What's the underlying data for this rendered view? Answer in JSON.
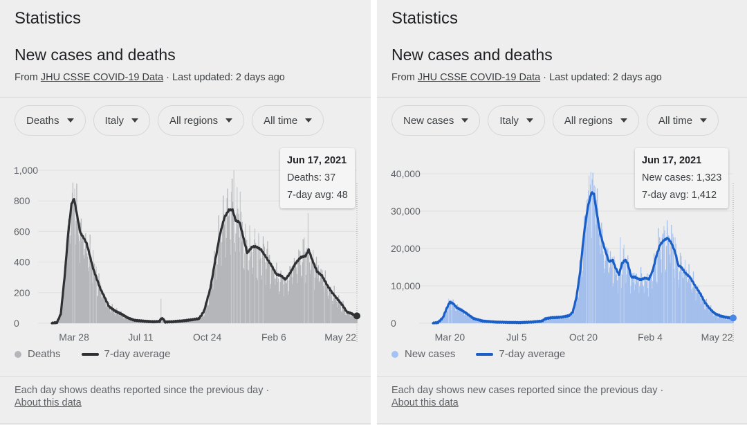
{
  "panels": [
    {
      "title": "Statistics",
      "subtitle": "New cases and deaths",
      "source_prefix": "From ",
      "source_link": "JHU CSSE COVID-19 Data",
      "source_suffix": " · Last updated: 2 days ago",
      "filters": [
        {
          "label": "Deaths"
        },
        {
          "label": "Italy"
        },
        {
          "label": "All regions"
        },
        {
          "label": "All time"
        }
      ],
      "tooltip": {
        "date": "Jun 17, 2021",
        "line1": "Deaths: 37",
        "line2": "7-day avg: 48"
      },
      "legend": {
        "bars_label": "Deaths",
        "line_label": "7-day average"
      },
      "footnote": "Each day shows deaths reported since the previous day",
      "footnote_sep": " · ",
      "footnote_link": "About this data",
      "colors": {
        "bar": "#b4b6ba",
        "bar_spike": "#c8cacd",
        "line": "#303134",
        "legend_dot": "#b4b6ba",
        "legend_line": "#303134"
      }
    },
    {
      "title": "Statistics",
      "subtitle": "New cases and deaths",
      "source_prefix": "From ",
      "source_link": "JHU CSSE COVID-19 Data",
      "source_suffix": " · Last updated: 2 days ago",
      "filters": [
        {
          "label": "New cases"
        },
        {
          "label": "Italy"
        },
        {
          "label": "All regions"
        },
        {
          "label": "All time"
        }
      ],
      "tooltip": {
        "date": "Jun 17, 2021",
        "line1": "New cases: 1,323",
        "line2": "7-day avg: 1,412"
      },
      "legend": {
        "bars_label": "New cases",
        "line_label": "7-day average"
      },
      "footnote": "Each day shows new cases reported since the previous day",
      "footnote_sep": " · ",
      "footnote_link": "About this data",
      "colors": {
        "bar": "#a4bfec",
        "bar_spike": "#bcd0f2",
        "line": "#1a5fc8",
        "legend_dot": "#a4c2f4",
        "legend_line": "#1a5fc8"
      }
    }
  ],
  "chart_data": [
    {
      "type": "bar",
      "title": "Deaths — Italy",
      "xlabel": "",
      "ylabel": "",
      "ylim": [
        0,
        1000
      ],
      "yticks": [
        "0",
        "200",
        "400",
        "600",
        "800",
        "1,000"
      ],
      "ytick_values": [
        0,
        200,
        400,
        600,
        800,
        1000
      ],
      "xticks": [
        "Mar 28",
        "Jul 11",
        "Oct 24",
        "Feb 6",
        "May 22"
      ],
      "xtick_days": [
        35,
        140,
        245,
        350,
        455
      ],
      "x_range_days": [
        0,
        481
      ],
      "x_start_date": "2020-02-22",
      "grid": true,
      "legend": "bottom-left",
      "series": [
        {
          "name": "Deaths",
          "kind": "bar"
        },
        {
          "name": "7-day average",
          "kind": "line",
          "keypoints_day_value": [
            [
              0,
              0
            ],
            [
              8,
              5
            ],
            [
              14,
              60
            ],
            [
              20,
              300
            ],
            [
              26,
              600
            ],
            [
              31,
              780
            ],
            [
              35,
              815
            ],
            [
              40,
              700
            ],
            [
              45,
              590
            ],
            [
              50,
              560
            ],
            [
              55,
              520
            ],
            [
              60,
              440
            ],
            [
              65,
              360
            ],
            [
              70,
              300
            ],
            [
              76,
              230
            ],
            [
              82,
              180
            ],
            [
              90,
              110
            ],
            [
              100,
              80
            ],
            [
              110,
              60
            ],
            [
              120,
              35
            ],
            [
              130,
              20
            ],
            [
              145,
              14
            ],
            [
              160,
              10
            ],
            [
              170,
              12
            ],
            [
              172,
              30
            ],
            [
              176,
              30
            ],
            [
              178,
              8
            ],
            [
              190,
              10
            ],
            [
              205,
              15
            ],
            [
              220,
              22
            ],
            [
              232,
              30
            ],
            [
              240,
              80
            ],
            [
              250,
              230
            ],
            [
              258,
              420
            ],
            [
              265,
              580
            ],
            [
              272,
              690
            ],
            [
              279,
              740
            ],
            [
              285,
              740
            ],
            [
              290,
              670
            ],
            [
              296,
              660
            ],
            [
              302,
              560
            ],
            [
              308,
              460
            ],
            [
              316,
              500
            ],
            [
              322,
              500
            ],
            [
              330,
              480
            ],
            [
              338,
              430
            ],
            [
              346,
              380
            ],
            [
              354,
              320
            ],
            [
              362,
              310
            ],
            [
              368,
              285
            ],
            [
              376,
              330
            ],
            [
              384,
              390
            ],
            [
              392,
              430
            ],
            [
              400,
              440
            ],
            [
              405,
              480
            ],
            [
              410,
              420
            ],
            [
              418,
              340
            ],
            [
              426,
              310
            ],
            [
              434,
              250
            ],
            [
              442,
              200
            ],
            [
              450,
              160
            ],
            [
              458,
              120
            ],
            [
              465,
              75
            ],
            [
              472,
              65
            ],
            [
              478,
              52
            ],
            [
              481,
              48
            ]
          ]
        },
        {
          "name": "Deaths spikes",
          "kind": "bar-spikes",
          "day_value": [
            [
              33,
              920
            ],
            [
              36,
              880
            ],
            [
              60,
              520
            ],
            [
              65,
              480
            ],
            [
              70,
              370
            ],
            [
              172,
              160
            ],
            [
              283,
              860
            ],
            [
              287,
              1000
            ],
            [
              292,
              890
            ],
            [
              297,
              860
            ],
            [
              305,
              650
            ],
            [
              312,
              640
            ],
            [
              320,
              620
            ],
            [
              326,
              590
            ],
            [
              333,
              500
            ],
            [
              398,
              560
            ],
            [
              404,
              720
            ],
            [
              412,
              480
            ],
            [
              430,
              270
            ],
            [
              440,
              240
            ]
          ]
        }
      ],
      "highlight": {
        "date": "Jun 17, 2021",
        "value": 37,
        "avg": 48
      }
    },
    {
      "type": "bar",
      "title": "New cases — Italy",
      "xlabel": "",
      "ylabel": "",
      "ylim": [
        0,
        40000
      ],
      "yticks": [
        "0",
        "10,000",
        "20,000",
        "30,000",
        "40,000"
      ],
      "ytick_values": [
        0,
        10000,
        20000,
        30000,
        40000
      ],
      "xticks": [
        "Mar 20",
        "Jul 5",
        "Oct 20",
        "Feb 4",
        "May 22"
      ],
      "xtick_days": [
        27,
        134,
        241,
        348,
        455
      ],
      "x_range_days": [
        0,
        481
      ],
      "x_start_date": "2020-02-22",
      "grid": true,
      "legend": "bottom-left",
      "series": [
        {
          "name": "New cases",
          "kind": "bar"
        },
        {
          "name": "7-day average",
          "kind": "line",
          "keypoints_day_value": [
            [
              0,
              0
            ],
            [
              8,
              200
            ],
            [
              16,
              1500
            ],
            [
              22,
              4000
            ],
            [
              27,
              5700
            ],
            [
              32,
              5300
            ],
            [
              38,
              4200
            ],
            [
              46,
              3500
            ],
            [
              55,
              2500
            ],
            [
              65,
              1300
            ],
            [
              80,
              600
            ],
            [
              100,
              350
            ],
            [
              120,
              250
            ],
            [
              140,
              200
            ],
            [
              160,
              350
            ],
            [
              175,
              600
            ],
            [
              180,
              1200
            ],
            [
              190,
              1500
            ],
            [
              205,
              1600
            ],
            [
              218,
              2000
            ],
            [
              224,
              3000
            ],
            [
              230,
              7000
            ],
            [
              236,
              14000
            ],
            [
              242,
              24000
            ],
            [
              248,
              31000
            ],
            [
              254,
              35000
            ],
            [
              258,
              34500
            ],
            [
              262,
              30000
            ],
            [
              268,
              24000
            ],
            [
              275,
              20000
            ],
            [
              282,
              16500
            ],
            [
              288,
              16800
            ],
            [
              292,
              15000
            ],
            [
              298,
              13000
            ],
            [
              303,
              16000
            ],
            [
              308,
              17000
            ],
            [
              312,
              16000
            ],
            [
              318,
              12300
            ],
            [
              324,
              12300
            ],
            [
              332,
              11600
            ],
            [
              340,
              12100
            ],
            [
              346,
              11800
            ],
            [
              352,
              14000
            ],
            [
              358,
              18000
            ],
            [
              364,
              21000
            ],
            [
              370,
              22200
            ],
            [
              376,
              22800
            ],
            [
              382,
              21500
            ],
            [
              388,
              19000
            ],
            [
              393,
              15500
            ],
            [
              398,
              15000
            ],
            [
              404,
              13500
            ],
            [
              412,
              12300
            ],
            [
              420,
              10000
            ],
            [
              428,
              8000
            ],
            [
              436,
              5500
            ],
            [
              444,
              3800
            ],
            [
              452,
              2600
            ],
            [
              460,
              2000
            ],
            [
              470,
              1600
            ],
            [
              481,
              1412
            ]
          ]
        },
        {
          "name": "New cases spikes",
          "kind": "bar-spikes",
          "day_value": [
            [
              25,
              6600
            ],
            [
              30,
              6200
            ],
            [
              246,
              33000
            ],
            [
              250,
              39500
            ],
            [
              253,
              40500
            ],
            [
              256,
              37000
            ],
            [
              260,
              36500
            ],
            [
              300,
              23000
            ],
            [
              306,
              21000
            ],
            [
              370,
              26000
            ],
            [
              376,
              25500
            ],
            [
              384,
              24000
            ],
            [
              388,
              23000
            ],
            [
              398,
              18000
            ],
            [
              404,
              17000
            ]
          ]
        }
      ],
      "highlight": {
        "date": "Jun 17, 2021",
        "value": 1323,
        "avg": 1412
      }
    }
  ]
}
